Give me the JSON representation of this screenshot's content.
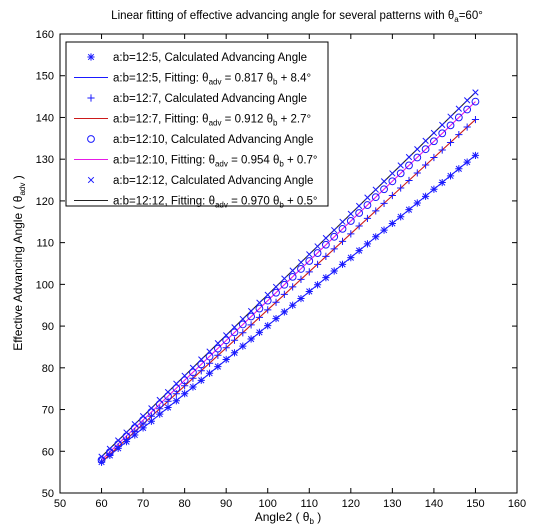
{
  "chart_data": {
    "type": "line",
    "title": "Linear fitting of effective advancing angle for several patterns with θ",
    "title_sub": "a",
    "title_tail": "=60°",
    "xlabel": "Angle2 ( θ",
    "xlabel_sub": "b",
    "xlabel_tail": " )",
    "ylabel": "Effective Advancing Angle ( θ",
    "ylabel_sub": "adv",
    "ylabel_tail": " )",
    "xlim": [
      50,
      160
    ],
    "ylim": [
      50,
      160
    ],
    "xticks": [
      50,
      60,
      70,
      80,
      90,
      100,
      110,
      120,
      130,
      140,
      150,
      160
    ],
    "yticks": [
      50,
      60,
      70,
      80,
      90,
      100,
      110,
      120,
      130,
      140,
      150,
      160
    ],
    "grid": false,
    "legend_position": "top-left",
    "x": [
      60,
      62,
      64,
      66,
      68,
      70,
      72,
      74,
      76,
      78,
      80,
      82,
      84,
      86,
      88,
      90,
      92,
      94,
      96,
      98,
      100,
      102,
      104,
      106,
      108,
      110,
      112,
      114,
      116,
      118,
      120,
      122,
      124,
      126,
      128,
      130,
      132,
      134,
      136,
      138,
      140,
      142,
      144,
      146,
      148,
      150
    ],
    "series": [
      {
        "name": "a:b=12:5, Calculated Advancing Angle",
        "kind": "markers",
        "marker": "asterisk",
        "color": "#1a1aff",
        "values": [
          57.4,
          59.0,
          60.7,
          62.3,
          63.9,
          65.6,
          67.2,
          68.9,
          70.5,
          72.1,
          73.8,
          75.4,
          77.0,
          78.7,
          80.3,
          82.0,
          83.6,
          85.2,
          86.9,
          88.5,
          90.1,
          91.8,
          93.4,
          95.0,
          96.6,
          98.3,
          99.9,
          101.6,
          103.2,
          104.8,
          106.4,
          108.1,
          109.7,
          111.4,
          113.0,
          114.6,
          116.2,
          117.9,
          119.5,
          121.1,
          122.8,
          124.4,
          126.0,
          127.7,
          129.3,
          130.9
        ]
      },
      {
        "name": "a:b=12:5, Fitting: θ",
        "sub1": "adv",
        "mid": " = 0.817 θ",
        "sub2": "b",
        "tail": " + 8.4°",
        "kind": "line",
        "color": "#1a1aff",
        "slope": 0.817,
        "intercept": 8.4
      },
      {
        "name": "a:b=12:7, Calculated Advancing Angle",
        "kind": "markers",
        "marker": "plus",
        "color": "#1a1aff",
        "values": [
          57.4,
          59.3,
          61.1,
          62.9,
          64.7,
          66.5,
          68.4,
          70.2,
          72.0,
          73.8,
          75.7,
          77.5,
          79.3,
          81.1,
          83.0,
          84.8,
          86.6,
          88.4,
          90.3,
          92.1,
          93.9,
          95.7,
          97.6,
          99.4,
          101.2,
          103.0,
          104.8,
          106.7,
          108.5,
          110.3,
          112.1,
          114.0,
          115.8,
          117.6,
          119.4,
          121.3,
          123.1,
          124.9,
          126.7,
          128.6,
          130.4,
          132.2,
          134.0,
          135.9,
          137.7,
          139.5
        ]
      },
      {
        "name": "a:b=12:7, Fitting: θ",
        "sub1": "adv",
        "mid": " = 0.912 θ",
        "sub2": "b",
        "tail": " + 2.7°",
        "kind": "line",
        "color": "#cc1a1a",
        "slope": 0.912,
        "intercept": 2.7
      },
      {
        "name": "a:b=12:10, Calculated Advancing Angle",
        "kind": "markers",
        "marker": "circle",
        "color": "#1a1aff",
        "values": [
          57.9,
          59.8,
          61.7,
          63.6,
          65.6,
          67.5,
          69.4,
          71.3,
          73.2,
          75.1,
          77.0,
          78.9,
          80.8,
          82.7,
          84.6,
          86.6,
          88.5,
          90.4,
          92.3,
          94.2,
          96.1,
          98.0,
          99.9,
          101.8,
          103.7,
          105.6,
          107.5,
          109.5,
          111.4,
          113.3,
          115.2,
          117.1,
          119.0,
          120.9,
          122.8,
          124.7,
          126.6,
          128.5,
          130.4,
          132.4,
          134.3,
          136.2,
          138.1,
          140.0,
          141.9,
          143.8
        ]
      },
      {
        "name": "a:b=12:10, Fitting: θ",
        "sub1": "adv",
        "mid": " = 0.954 θ",
        "sub2": "b",
        "tail": " + 0.7°",
        "kind": "line",
        "color": "#e61ae6",
        "slope": 0.954,
        "intercept": 0.7
      },
      {
        "name": "a:b=12:12, Calculated Advancing Angle",
        "kind": "markers",
        "marker": "cross",
        "color": "#1a1aff",
        "values": [
          58.7,
          60.6,
          62.6,
          64.5,
          66.5,
          68.4,
          70.3,
          72.3,
          74.2,
          76.2,
          78.1,
          80.0,
          82.0,
          83.9,
          85.9,
          87.8,
          89.7,
          91.7,
          93.6,
          95.6,
          97.5,
          99.4,
          101.4,
          103.3,
          105.3,
          107.2,
          109.1,
          111.1,
          113.0,
          115.0,
          116.9,
          118.8,
          120.8,
          122.7,
          124.7,
          126.6,
          128.5,
          130.5,
          132.4,
          134.4,
          136.3,
          138.2,
          140.2,
          142.1,
          144.1,
          146.0
        ]
      },
      {
        "name": "a:b=12:12, Fitting: θ",
        "sub1": "adv",
        "mid": " = 0.970 θ",
        "sub2": "b",
        "tail": " + 0.5°",
        "kind": "line",
        "color": "#222222",
        "slope": 0.97,
        "intercept": 0.5
      }
    ]
  }
}
